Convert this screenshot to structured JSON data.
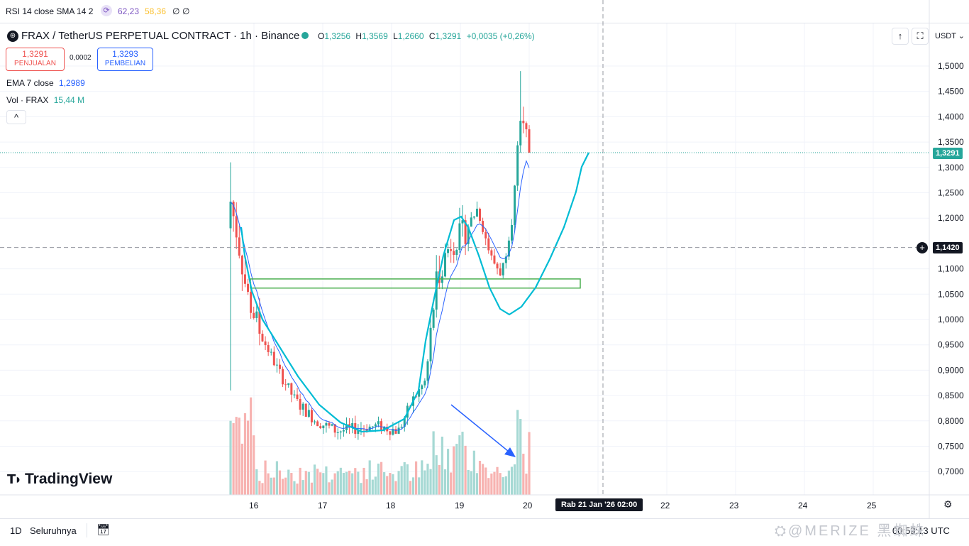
{
  "rsi_bar": {
    "label": "RSI 14 close SMA 14 2",
    "value1": "62,23",
    "value2": "58,36",
    "value3": "∅",
    "value4": "∅"
  },
  "header": {
    "title": "FRAX / TetherUS PERPETUAL CONTRACT · 1h · Binance",
    "open_label": "O",
    "open": "1,3256",
    "high_label": "H",
    "high": "1,3569",
    "low_label": "L",
    "low": "1,2660",
    "close_label": "C",
    "close": "1,3291",
    "change": "+0,0035 (+0,26%)",
    "currency": "USDT ⌄"
  },
  "trade": {
    "sell_price": "1,3291",
    "sell_label": "PENJUALAN",
    "spread": "0,0002",
    "buy_price": "1,3293",
    "buy_label": "PEMBELIAN"
  },
  "indicators": {
    "ema_label": "EMA 7 close",
    "ema_value": "1,2989",
    "vol_label": "Vol · FRAX",
    "vol_value": "15,44 M",
    "collapse": "^"
  },
  "brand": {
    "logo_text": "TradingView"
  },
  "price_axis": {
    "ticks": [
      "1,5000",
      "1,4500",
      "1,4000",
      "1,3500",
      "1,3000",
      "1,2500",
      "1,2000",
      "1,1000",
      "1,0500",
      "1,0000",
      "0,9500",
      "0,9000",
      "0,8500",
      "0,8000",
      "0,7500",
      "0,7000"
    ],
    "last_price_tag": "1,3291",
    "crosshair_tag": "1,1420"
  },
  "time_axis": {
    "ticks": [
      "16",
      "17",
      "18",
      "19",
      "20",
      "22",
      "23",
      "24",
      "25"
    ],
    "crosshair_tag": "Rab 21 Jan '26   02:00"
  },
  "bottom_bar": {
    "interval": "1D",
    "range": "Seluruhnya",
    "clock": "00:59:13 UTC"
  },
  "watermark": "⛭@MERIZE 黑蜘蛛",
  "colors": {
    "up": "#26a69a",
    "down": "#ef5350",
    "ema": "#2962ff",
    "drawing": "#00bcd4",
    "box": "#4caf50",
    "arrow": "#2962ff"
  },
  "chart_data": {
    "type": "candlestick",
    "symbol": "FRAX / TetherUS PERPETUAL CONTRACT",
    "interval": "1h",
    "y_range": [
      0.68,
      1.52
    ],
    "x_categories": [
      "16",
      "17",
      "18",
      "19",
      "20"
    ],
    "price_path": [
      {
        "t": 15.65,
        "price": 1.24
      },
      {
        "t": 15.75,
        "price": 1.17
      },
      {
        "t": 15.9,
        "price": 1.05
      },
      {
        "t": 16.1,
        "price": 0.97
      },
      {
        "t": 16.35,
        "price": 0.9
      },
      {
        "t": 16.6,
        "price": 0.84
      },
      {
        "t": 16.9,
        "price": 0.8
      },
      {
        "t": 17.2,
        "price": 0.78
      },
      {
        "t": 17.5,
        "price": 0.785
      },
      {
        "t": 17.8,
        "price": 0.79
      },
      {
        "t": 18.1,
        "price": 0.78
      },
      {
        "t": 18.3,
        "price": 0.84
      },
      {
        "t": 18.5,
        "price": 0.88
      },
      {
        "t": 18.65,
        "price": 1.08
      },
      {
        "t": 18.85,
        "price": 1.15
      },
      {
        "t": 19.05,
        "price": 1.17
      },
      {
        "t": 19.25,
        "price": 1.22
      },
      {
        "t": 19.45,
        "price": 1.12
      },
      {
        "t": 19.6,
        "price": 1.09
      },
      {
        "t": 19.75,
        "price": 1.2
      },
      {
        "t": 19.9,
        "price": 1.42
      },
      {
        "t": 20.0,
        "price": 1.33
      }
    ],
    "ema7_last": 1.2989,
    "last_price": 1.3291,
    "crosshair_price": 1.142,
    "box_zone": [
      1.062,
      1.08
    ],
    "volume_peak": "15,44 M"
  }
}
